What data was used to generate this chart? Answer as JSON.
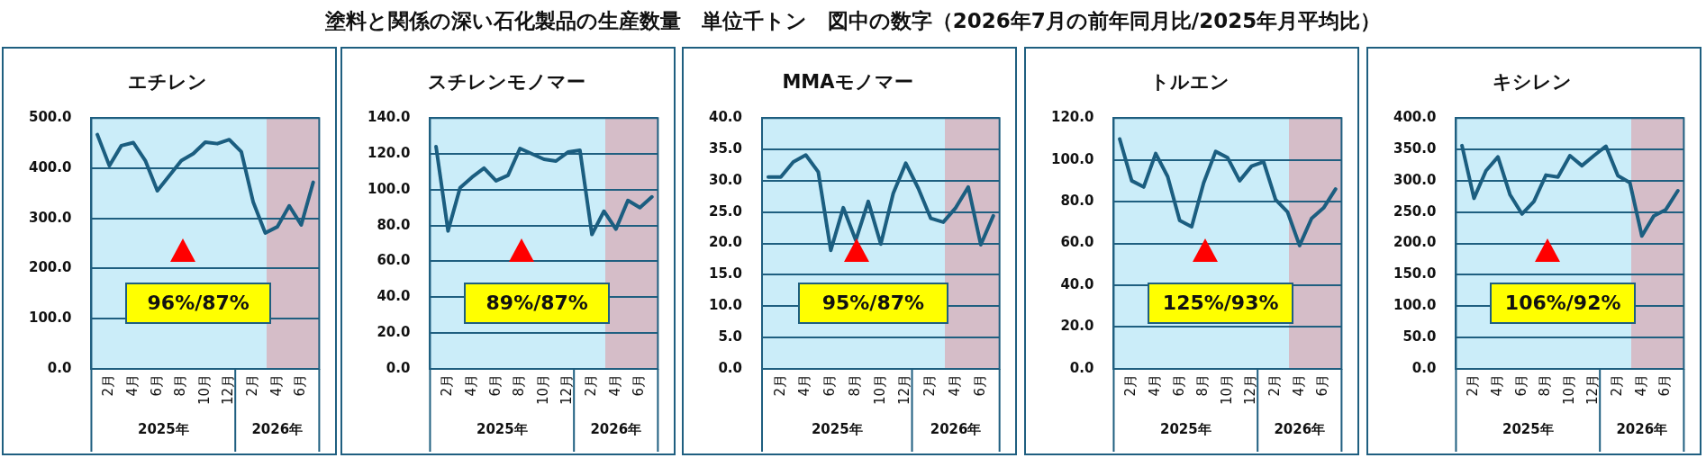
{
  "chart_data": [
    {
      "type": "other",
      "title": "塗料と関係の深い石化製品の生産数量　単位千トン　図中の数字（2026年7月の前年同月比/2025年月平均比）"
    },
    {
      "type": "line",
      "title": "エチレン",
      "categories": [
        null,
        "2月",
        null,
        "4月",
        null,
        "6月",
        null,
        "8月",
        null,
        "10月",
        null,
        "12月",
        null,
        "2月",
        null,
        "4月",
        null,
        "6月",
        null
      ],
      "values": [
        467,
        405,
        445,
        451,
        415,
        355,
        385,
        415,
        429,
        452,
        449,
        457,
        433,
        332,
        271,
        283,
        325,
        287,
        372
      ],
      "color": "#1b5e80",
      "ylim": [
        0,
        500
      ],
      "yticks": [
        {
          "value": 0,
          "label": "0.0"
        },
        {
          "value": 100,
          "label": "100.0"
        },
        {
          "value": 200,
          "label": "200.0"
        },
        {
          "value": 300,
          "label": "300.0"
        },
        {
          "value": 400,
          "label": "400.0"
        },
        {
          "value": 500,
          "label": "500.0"
        }
      ],
      "grid": "y",
      "marker": "none",
      "line_style": "solid",
      "legend": false,
      "annotations": [
        "96%/87%",
        "2025年",
        "2026年"
      ]
    },
    {
      "type": "line",
      "title": "スチレンモノマー",
      "categories": [
        null,
        "2月",
        null,
        "4月",
        null,
        "6月",
        null,
        "8月",
        null,
        "10月",
        null,
        "12月",
        null,
        "2月",
        null,
        "4月",
        null,
        "6月",
        null
      ],
      "values": [
        124,
        77,
        101,
        107,
        112,
        105,
        108,
        123,
        120,
        117,
        116,
        121,
        122,
        75,
        88,
        78,
        94,
        90,
        96
      ],
      "color": "#1b5e80",
      "ylim": [
        0,
        140
      ],
      "yticks": [
        {
          "value": 0,
          "label": "0.0"
        },
        {
          "value": 20,
          "label": "20.0"
        },
        {
          "value": 40,
          "label": "40.0"
        },
        {
          "value": 60,
          "label": "60.0"
        },
        {
          "value": 80,
          "label": "80.0"
        },
        {
          "value": 100,
          "label": "100.0"
        },
        {
          "value": 120,
          "label": "120.0"
        },
        {
          "value": 140,
          "label": "140.0"
        }
      ],
      "grid": "y",
      "marker": "none",
      "line_style": "solid",
      "legend": false,
      "annotations": [
        "89%/87%",
        "2025年",
        "2026年"
      ]
    },
    {
      "type": "line",
      "title": "MMAモノマー",
      "categories": [
        null,
        "2月",
        null,
        "4月",
        null,
        "6月",
        null,
        "8月",
        null,
        "10月",
        null,
        "12月",
        null,
        "2月",
        null,
        "4月",
        null,
        "6月",
        null
      ],
      "values": [
        30.6,
        30.6,
        33.0,
        34.1,
        31.4,
        18.9,
        25.7,
        20.5,
        26.7,
        19.9,
        28.0,
        32.8,
        28.8,
        24.0,
        23.4,
        25.7,
        29.0,
        19.8,
        24.4
      ],
      "color": "#1b5e80",
      "ylim": [
        0,
        40
      ],
      "yticks": [
        {
          "value": 0,
          "label": "0.0"
        },
        {
          "value": 5,
          "label": "5.0"
        },
        {
          "value": 10,
          "label": "10.0"
        },
        {
          "value": 15,
          "label": "15.0"
        },
        {
          "value": 20,
          "label": "20.0"
        },
        {
          "value": 25,
          "label": "25.0"
        },
        {
          "value": 30,
          "label": "30.0"
        },
        {
          "value": 35,
          "label": "35.0"
        },
        {
          "value": 40,
          "label": "40.0"
        }
      ],
      "grid": "y",
      "marker": "none",
      "line_style": "solid",
      "legend": false,
      "annotations": [
        "95%/87%",
        "2025年",
        "2026年"
      ]
    },
    {
      "type": "line",
      "title": "トルエン",
      "categories": [
        null,
        "2月",
        null,
        "4月",
        null,
        "6月",
        null,
        "8月",
        null,
        "10月",
        null,
        "12月",
        null,
        "2月",
        null,
        "4月",
        null,
        "6月",
        null
      ],
      "values": [
        110,
        90,
        87,
        103,
        92,
        71,
        68,
        89,
        104,
        101,
        90,
        97,
        99,
        81,
        75,
        59,
        72,
        77,
        86
      ],
      "color": "#1b5e80",
      "ylim": [
        0,
        120
      ],
      "yticks": [
        {
          "value": 0,
          "label": "0.0"
        },
        {
          "value": 20,
          "label": "20.0"
        },
        {
          "value": 40,
          "label": "40.0"
        },
        {
          "value": 60,
          "label": "60.0"
        },
        {
          "value": 80,
          "label": "80.0"
        },
        {
          "value": 100,
          "label": "100.0"
        },
        {
          "value": 120,
          "label": "120.0"
        }
      ],
      "grid": "y",
      "marker": "none",
      "line_style": "solid",
      "legend": false,
      "annotations": [
        "125%/93%",
        "2025年",
        "2026年"
      ]
    },
    {
      "type": "line",
      "title": "キシレン",
      "categories": [
        null,
        "2月",
        null,
        "4月",
        null,
        "6月",
        null,
        "8月",
        null,
        "10月",
        null,
        "12月",
        null,
        "2月",
        null,
        "4月",
        null,
        "6月",
        null
      ],
      "values": [
        356,
        272,
        316,
        338,
        278,
        247,
        267,
        309,
        306,
        340,
        324,
        340,
        355,
        308,
        297,
        212,
        244,
        254,
        284
      ],
      "color": "#1b5e80",
      "ylim": [
        0,
        400
      ],
      "yticks": [
        {
          "value": 0,
          "label": "0.0"
        },
        {
          "value": 50,
          "label": "50.0"
        },
        {
          "value": 100,
          "label": "100.0"
        },
        {
          "value": 150,
          "label": "150.0"
        },
        {
          "value": 200,
          "label": "200.0"
        },
        {
          "value": 250,
          "label": "250.0"
        },
        {
          "value": 300,
          "label": "300.0"
        },
        {
          "value": 350,
          "label": "350.0"
        },
        {
          "value": 400,
          "label": "400.0"
        }
      ],
      "grid": "y",
      "marker": "none",
      "line_style": "solid",
      "legend": false,
      "annotations": [
        "106%/92%",
        "2025年",
        "2026年"
      ]
    }
  ]
}
